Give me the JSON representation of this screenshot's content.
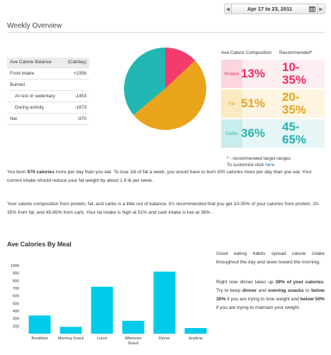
{
  "date_picker": {
    "prev_icon": "chevron-left-icon",
    "range": "Apr 17 to 23, 2011",
    "calendar_icon": "calendar-icon",
    "next_icon": "chevron-right-icon"
  },
  "overview": {
    "title": "Weekly Overview"
  },
  "balance": {
    "header_label": "Ave Calorie Balance",
    "header_unit": "(Cal/day)",
    "rows": [
      {
        "label": "Food intake",
        "value": "+2356",
        "indent": false
      },
      {
        "label": "Burned",
        "value": "",
        "indent": false
      },
      {
        "label": "At rest or sedentary",
        "value": "-1453",
        "indent": true
      },
      {
        "label": "During activity",
        "value": "-1873",
        "indent": true
      },
      {
        "label": "Net",
        "value": "-970",
        "indent": false
      }
    ]
  },
  "pie": {
    "slices": [
      {
        "name": "Protein",
        "percent": 13,
        "color": "#f53a6c"
      },
      {
        "name": "Fat",
        "percent": 51,
        "color": "#e9a41c"
      },
      {
        "name": "Carbs",
        "percent": 36,
        "color": "#23b7b3"
      }
    ]
  },
  "composition": {
    "col_header": "Ave Caloric Composition",
    "rec_header": "Recommended*",
    "rows": [
      {
        "label": "Protein",
        "pct": "13%",
        "rec_line1": "10-",
        "rec_line2": "35%",
        "color": "#ee2b62"
      },
      {
        "label": "Fat",
        "pct": "51%",
        "rec_line1": "20-",
        "rec_line2": "35%",
        "color": "#e4a31d"
      },
      {
        "label": "Carbs",
        "pct": "36%",
        "rec_line1": "45-",
        "rec_line2": "65%",
        "color": "#27b1ae"
      }
    ],
    "note": "* - recommended target ranges",
    "customize_prefix": "To customize click ",
    "customize_link": "here"
  },
  "paragraphs": {
    "p1_a": "You burn ",
    "p1_b": "970 calories",
    "p1_c": " more per day than you eat. To lose 1lb of fat a week, you would have to burn 500 calories more per day than you eat. Your current intake should reduce your fat weight by about 1.9 lb per week.",
    "p2": "Your calorie composition from protein, fat, and carbs is a little out of balance. It's recommended that you get 10-35% of your calories from protein, 20-35% from fat, and 45-65% from carb. Your fat intake is high at 51% and carb intake is low at 36% ."
  },
  "meals": {
    "title": "Ave Calories By Meal",
    "side1": "Good eating habits spread calorie intake throughout the day and skew toward the morning.",
    "side2_a": "Right now dinner takes up ",
    "side2_b": "39% of your calories",
    "side2_c": ". Try to keep ",
    "side2_d": "dinner",
    "side2_e": " and ",
    "side2_f": "evening snacks",
    "side2_g": " to ",
    "side2_h": "below 30%",
    "side2_i": " if you are trying to lose weight and ",
    "side2_j": "below 50%",
    "side2_k": " if you are trying to maintain your weight."
  },
  "chart_data": {
    "type": "bar",
    "categories": [
      "Breakfast",
      "Morning Snack",
      "Lunch",
      "Afternoon Snack",
      "Dinner",
      "Anytime"
    ],
    "values": [
      340,
      190,
      720,
      270,
      920,
      175
    ],
    "ylim": [
      100,
      1000
    ],
    "yticks": [
      200,
      300,
      400,
      500,
      600,
      700,
      800,
      900,
      1000
    ],
    "bar_color": "#00ccea",
    "grid": false
  }
}
